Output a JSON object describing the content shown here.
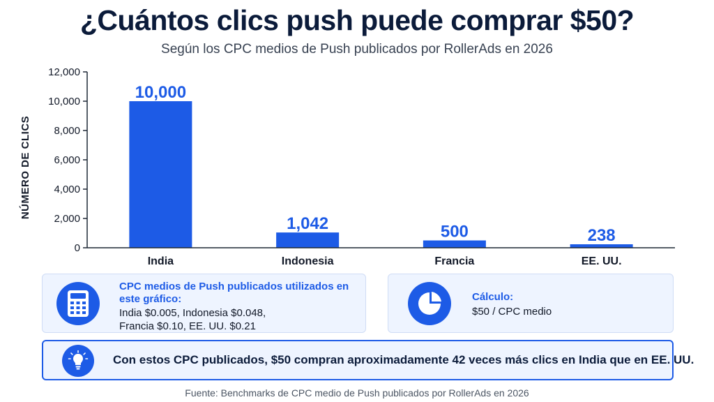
{
  "header": {
    "title": "¿Cuántos clics push puede comprar $50?",
    "subtitle": "Según los CPC medios de Push publicados por RollerAds en 2026"
  },
  "chart_data": {
    "type": "bar",
    "title": "¿Cuántos clics push puede comprar $50?",
    "subtitle": "Según los CPC medios de Push publicados por RollerAds en 2026",
    "xlabel": "",
    "ylabel": "NÚMERO DE CLICS",
    "categories": [
      "India",
      "Indonesia",
      "Francia",
      "EE. UU."
    ],
    "values": [
      10000,
      1042,
      500,
      238
    ],
    "data_labels": [
      "10,000",
      "1,042",
      "500",
      "238"
    ],
    "ylim": [
      0,
      12000
    ],
    "yticks": [
      0,
      2000,
      4000,
      6000,
      8000,
      10000,
      12000
    ],
    "ytick_labels": [
      "0",
      "2,000",
      "4,000",
      "6,000",
      "8,000",
      "10,000",
      "12,000"
    ],
    "bar_color": "#1d5be6",
    "grid": false,
    "legend": "none"
  },
  "cards": {
    "cpc": {
      "icon": "calculator-icon",
      "heading": "CPC medios de Push publicados utilizados en este gráfico:",
      "line1": "India $0.005, Indonesia $0.048,",
      "line2": "Francia $0.10, EE. UU. $0.21"
    },
    "calc": {
      "icon": "pie-chart-icon",
      "heading": "Cálculo:",
      "body": "$50 / CPC medio"
    },
    "insight": {
      "icon": "lightbulb-icon",
      "message": "Con estos CPC publicados, $50 compran aproximadamente 42 veces más clics en India que en EE. UU."
    }
  },
  "footer": {
    "source": "Fuente: Benchmarks de CPC medio de Push publicados por RollerAds en 2026"
  },
  "colors": {
    "accent": "#1d5be6",
    "title": "#0b1b3a",
    "card_bg": "#eef4ff"
  }
}
